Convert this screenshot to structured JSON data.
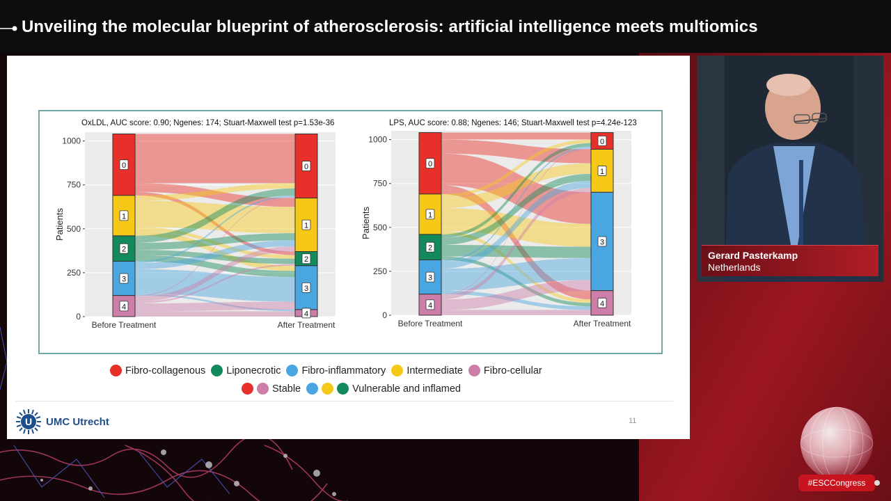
{
  "banner": {
    "title": "Unveiling the molecular blueprint of atherosclerosis: artificial intelligence meets multiomics"
  },
  "colors": {
    "fibro_collagenous": "#e8302a",
    "liponecrotic": "#138a5c",
    "fibro_inflammatory": "#4aa6e0",
    "intermediate": "#f6c919",
    "fibro_cellular": "#cc7ea8",
    "frame": "#6fa7a6",
    "brand_red": "#c8141f"
  },
  "chart_data": [
    {
      "type": "sankey",
      "title": "OxLDL, AUC score: 0.90; Ngenes: 174; Stuart-Maxwell test p=1.53e-36",
      "ylabel": "Patients",
      "ylim": [
        0,
        1050
      ],
      "yticks": [
        "0",
        "250",
        "500",
        "750",
        "1000"
      ],
      "ytick_values": [
        0,
        250,
        500,
        750,
        1000
      ],
      "axes": [
        "Before Treatment",
        "After Treatment"
      ],
      "before": [
        {
          "label": "0",
          "value": 350
        },
        {
          "label": "1",
          "value": 230
        },
        {
          "label": "2",
          "value": 145
        },
        {
          "label": "3",
          "value": 195
        },
        {
          "label": "4",
          "value": 120
        }
      ],
      "after": [
        {
          "label": "0",
          "value": 365
        },
        {
          "label": "1",
          "value": 305
        },
        {
          "label": "2",
          "value": 80
        },
        {
          "label": "3",
          "value": 250
        },
        {
          "label": "4",
          "value": 40
        }
      ],
      "flows": [
        {
          "from": 0,
          "to": 0,
          "value": 280
        },
        {
          "from": 0,
          "to": 1,
          "value": 50
        },
        {
          "from": 0,
          "to": 2,
          "value": 20
        },
        {
          "from": 1,
          "to": 0,
          "value": 30
        },
        {
          "from": 1,
          "to": 1,
          "value": 150
        },
        {
          "from": 1,
          "to": 2,
          "value": 20
        },
        {
          "from": 1,
          "to": 3,
          "value": 30
        },
        {
          "from": 2,
          "to": 0,
          "value": 40
        },
        {
          "from": 2,
          "to": 1,
          "value": 40
        },
        {
          "from": 2,
          "to": 2,
          "value": 30
        },
        {
          "from": 2,
          "to": 3,
          "value": 35
        },
        {
          "from": 3,
          "to": 0,
          "value": 10
        },
        {
          "from": 3,
          "to": 1,
          "value": 35
        },
        {
          "from": 3,
          "to": 3,
          "value": 140
        },
        {
          "from": 3,
          "to": 4,
          "value": 10
        },
        {
          "from": 4,
          "to": 0,
          "value": 5
        },
        {
          "from": 4,
          "to": 1,
          "value": 30
        },
        {
          "from": 4,
          "to": 2,
          "value": 10
        },
        {
          "from": 4,
          "to": 3,
          "value": 45
        },
        {
          "from": 4,
          "to": 4,
          "value": 30
        }
      ]
    },
    {
      "type": "sankey",
      "title": "LPS, AUC score: 0.88; Ngenes: 146; Stuart-Maxwell test p=4.24e-123",
      "ylabel": "Patients",
      "ylim": [
        0,
        1050
      ],
      "yticks": [
        "0",
        "250",
        "500",
        "750",
        "1000"
      ],
      "ytick_values": [
        0,
        250,
        500,
        750,
        1000
      ],
      "axes": [
        "Before Treatment",
        "After Treatment"
      ],
      "before": [
        {
          "label": "0",
          "value": 350
        },
        {
          "label": "1",
          "value": 230
        },
        {
          "label": "2",
          "value": 145
        },
        {
          "label": "3",
          "value": 195
        },
        {
          "label": "4",
          "value": 120
        }
      ],
      "after": [
        {
          "label": "0",
          "value": 95
        },
        {
          "label": "1",
          "value": 245
        },
        {
          "label": "2",
          "value": 0
        },
        {
          "label": "3",
          "value": 560
        },
        {
          "label": "4",
          "value": 140
        }
      ],
      "flows": [
        {
          "from": 0,
          "to": 0,
          "value": 40
        },
        {
          "from": 0,
          "to": 1,
          "value": 80
        },
        {
          "from": 0,
          "to": 3,
          "value": 180
        },
        {
          "from": 0,
          "to": 4,
          "value": 50
        },
        {
          "from": 1,
          "to": 0,
          "value": 20
        },
        {
          "from": 1,
          "to": 1,
          "value": 60
        },
        {
          "from": 1,
          "to": 3,
          "value": 130
        },
        {
          "from": 1,
          "to": 4,
          "value": 20
        },
        {
          "from": 2,
          "to": 0,
          "value": 20
        },
        {
          "from": 2,
          "to": 1,
          "value": 40
        },
        {
          "from": 2,
          "to": 3,
          "value": 65
        },
        {
          "from": 2,
          "to": 4,
          "value": 20
        },
        {
          "from": 3,
          "to": 0,
          "value": 10
        },
        {
          "from": 3,
          "to": 1,
          "value": 40
        },
        {
          "from": 3,
          "to": 3,
          "value": 125
        },
        {
          "from": 3,
          "to": 4,
          "value": 20
        },
        {
          "from": 4,
          "to": 0,
          "value": 5
        },
        {
          "from": 4,
          "to": 1,
          "value": 25
        },
        {
          "from": 4,
          "to": 3,
          "value": 60
        },
        {
          "from": 4,
          "to": 4,
          "value": 30
        }
      ]
    }
  ],
  "legend": {
    "items": [
      {
        "label": "Fibro-collagenous",
        "color": "#e8302a"
      },
      {
        "label": "Liponecrotic",
        "color": "#138a5c"
      },
      {
        "label": "Fibro-inflammatory",
        "color": "#4aa6e0"
      },
      {
        "label": "Intermediate",
        "color": "#f6c919"
      },
      {
        "label": "Fibro-cellular",
        "color": "#cc7ea8"
      }
    ],
    "groups": [
      {
        "label": "Stable",
        "colors": [
          "#e8302a",
          "#cc7ea8"
        ]
      },
      {
        "label": "Vulnerable and inflamed",
        "colors": [
          "#4aa6e0",
          "#f6c919",
          "#138a5c"
        ]
      }
    ]
  },
  "footer": {
    "logo_text": "UMC Utrecht",
    "logo_letter": "U",
    "slide_number": "11"
  },
  "speaker": {
    "name": "Gerard Pasterkamp",
    "country": "Netherlands"
  },
  "hashtag": "#ESCCongress"
}
